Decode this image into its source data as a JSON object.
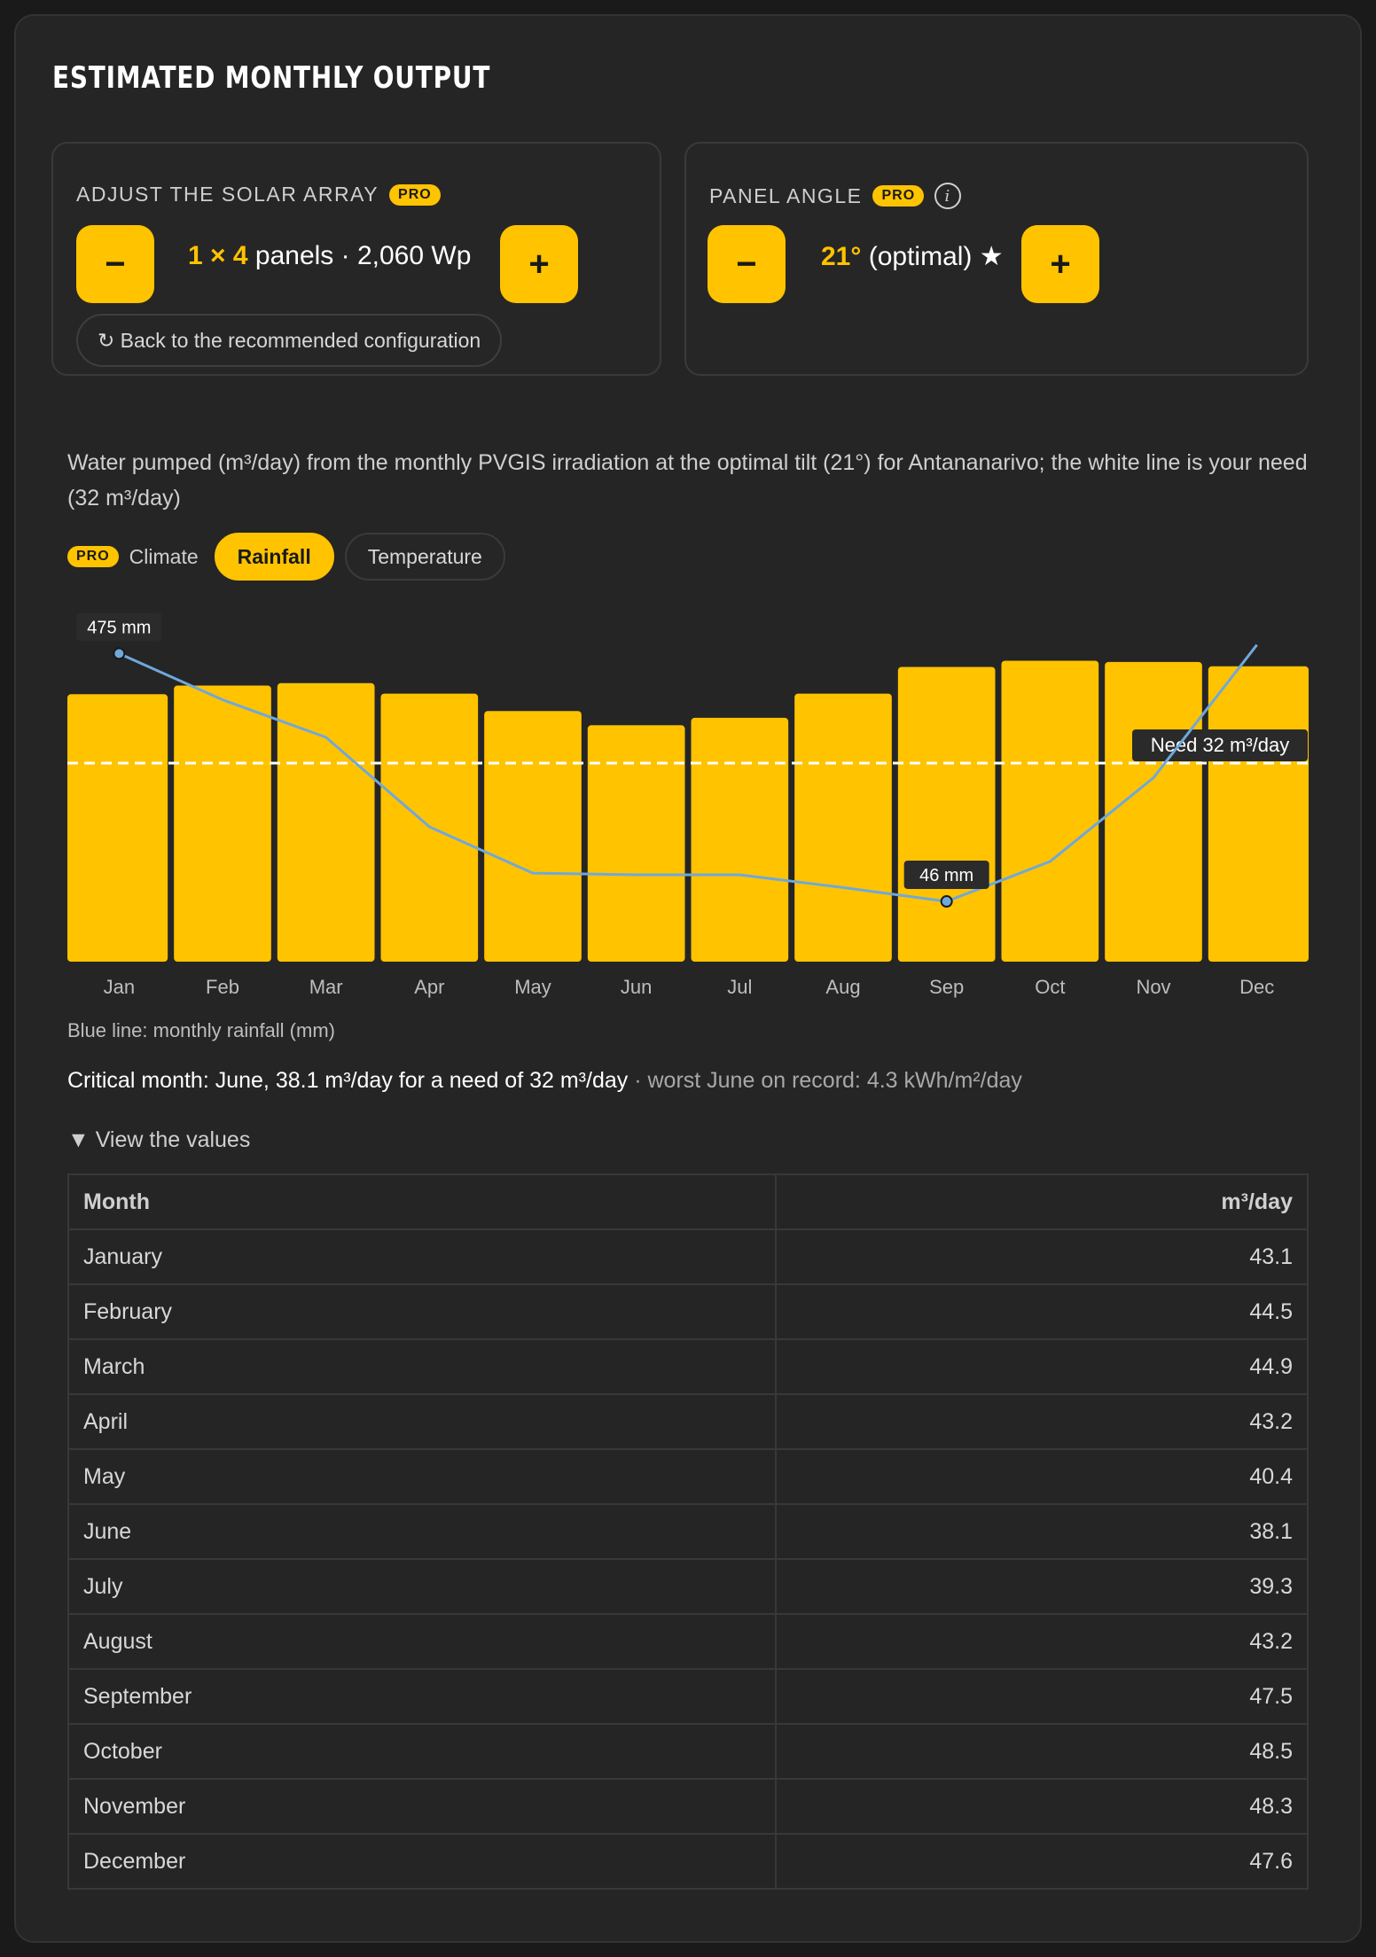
{
  "header": {
    "title": "ESTIMATED MONTHLY OUTPUT"
  },
  "array_panel": {
    "label": "ADJUST THE SOLAR ARRAY",
    "badge": "PRO",
    "minus_label": "−",
    "plus_label": "+",
    "value_highlight": "1 × 4",
    "value_rest": "panels · 2,060 Wp",
    "reset_label": "↻ Back to the recommended configuration"
  },
  "angle_panel": {
    "label": "PANEL ANGLE",
    "badge": "PRO",
    "info": "i",
    "minus_label": "−",
    "plus_label": "+",
    "value_highlight": "21°",
    "value_rest": "(optimal) ★"
  },
  "description": "Water pumped (m³/day) from the monthly PVGIS irradiation at the optimal tilt (21°) for Antananarivo; the white line is your need (32 m³/day)",
  "climate": {
    "badge": "PRO",
    "label": "Climate",
    "options": [
      "Rainfall",
      "Temperature"
    ],
    "selected": "Rainfall"
  },
  "chart_data": {
    "type": "bar",
    "categories": [
      "Jan",
      "Feb",
      "Mar",
      "Apr",
      "May",
      "Jun",
      "Jul",
      "Aug",
      "Sep",
      "Oct",
      "Nov",
      "Dec"
    ],
    "series": [
      {
        "values": [
          43.1,
          44.5,
          44.9,
          43.2,
          40.4,
          38.1,
          39.3,
          43.2,
          47.5,
          48.5,
          48.3,
          47.6
        ],
        "color": "#ffc300"
      }
    ],
    "rainfall_line": {
      "values": [
        475,
        395,
        330,
        175,
        95,
        92,
        92,
        70,
        46,
        115,
        260,
        490
      ],
      "color": "#6fa8dc",
      "labels": [
        {
          "month": "Jan",
          "text": "475 mm"
        },
        {
          "month": "Sep",
          "text": "46 mm"
        }
      ]
    },
    "need_line": {
      "value": 32,
      "label": "Need 32 m³/day",
      "color": "#ffffff"
    },
    "ylim": [
      0,
      50
    ]
  },
  "legend_note": "Blue line: monthly rainfall (mm)",
  "critical": {
    "main": "Critical month: June, 38.1 m³/day for a need of 32 m³/day",
    "muted": " · worst June on record: 4.3 kWh/m²/day"
  },
  "details_toggle": "▼ View the values",
  "table": {
    "headers": [
      "Month",
      "m³/day"
    ],
    "rows": [
      [
        "January",
        "43.1"
      ],
      [
        "February",
        "44.5"
      ],
      [
        "March",
        "44.9"
      ],
      [
        "April",
        "43.2"
      ],
      [
        "May",
        "40.4"
      ],
      [
        "June",
        "38.1"
      ],
      [
        "July",
        "39.3"
      ],
      [
        "August",
        "43.2"
      ],
      [
        "September",
        "47.5"
      ],
      [
        "October",
        "48.5"
      ],
      [
        "November",
        "48.3"
      ],
      [
        "December",
        "47.6"
      ]
    ]
  }
}
